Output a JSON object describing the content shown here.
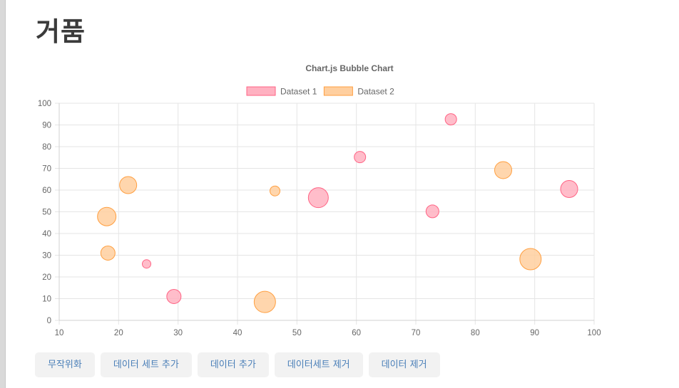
{
  "page": {
    "title": "거품"
  },
  "buttons": [
    {
      "label": "무작위화"
    },
    {
      "label": "데이터 세트 추가"
    },
    {
      "label": "데이터 추가"
    },
    {
      "label": "데이터세트 제거"
    },
    {
      "label": "데이터 제거"
    }
  ],
  "chart_data": {
    "type": "scatter",
    "subtype": "bubble",
    "title": "Chart.js Bubble Chart",
    "xlabel": "",
    "ylabel": "",
    "xlim": [
      10,
      100
    ],
    "ylim": [
      0,
      100
    ],
    "x_ticks": [
      10,
      20,
      30,
      40,
      50,
      60,
      70,
      80,
      90,
      100
    ],
    "y_ticks": [
      0,
      10,
      20,
      30,
      40,
      50,
      60,
      70,
      80,
      90,
      100
    ],
    "grid": true,
    "legend_position": "top",
    "series": [
      {
        "name": "Dataset 1",
        "color": "#ff6384",
        "fill": "#ffb1c1",
        "points": [
          {
            "x": 24.7,
            "y": 26,
            "r": 6
          },
          {
            "x": 29.3,
            "y": 11,
            "r": 10
          },
          {
            "x": 53.6,
            "y": 56.5,
            "r": 14
          },
          {
            "x": 60.6,
            "y": 75.2,
            "r": 8
          },
          {
            "x": 72.8,
            "y": 50.2,
            "r": 9
          },
          {
            "x": 75.9,
            "y": 92.6,
            "r": 8
          },
          {
            "x": 95.8,
            "y": 60.5,
            "r": 12
          }
        ]
      },
      {
        "name": "Dataset 2",
        "color": "#ff9f40",
        "fill": "#ffcf9f",
        "points": [
          {
            "x": 18.0,
            "y": 47.8,
            "r": 13
          },
          {
            "x": 18.2,
            "y": 31,
            "r": 10
          },
          {
            "x": 21.6,
            "y": 62.3,
            "r": 12
          },
          {
            "x": 44.6,
            "y": 8.5,
            "r": 15
          },
          {
            "x": 46.3,
            "y": 59.6,
            "r": 7
          },
          {
            "x": 84.7,
            "y": 69.2,
            "r": 12
          },
          {
            "x": 89.3,
            "y": 28.2,
            "r": 15
          }
        ]
      }
    ]
  }
}
